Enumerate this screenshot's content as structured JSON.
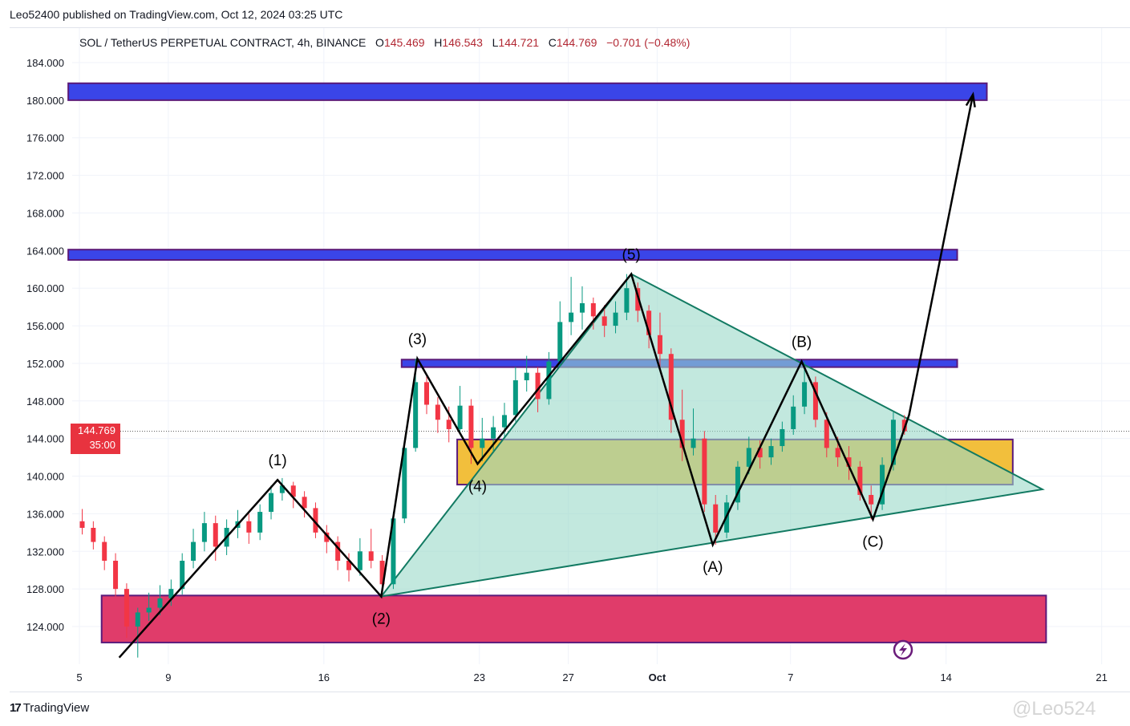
{
  "publisher": "Leo52400 published on TradingView.com, Oct 12, 2024 03:25 UTC",
  "legend": {
    "symbol": "SOL / TetherUS PERPETUAL CONTRACT, 4h, BINANCE",
    "o_label": "O",
    "o": "145.469",
    "h_label": "H",
    "h": "146.543",
    "l_label": "L",
    "l": "144.721",
    "c_label": "C",
    "c": "144.769",
    "change": "−0.701 (−0.48%)"
  },
  "price_label": {
    "price": "144.769",
    "countdown": "35:00"
  },
  "brand": "TradingView",
  "watermark": "@Leo524",
  "colors": {
    "up": "#089981",
    "down": "#f23645",
    "resistance": "#3a45e8",
    "support_zone": "#f2bf3c",
    "demand_zone": "#e03c6a",
    "triangle": "#9ad8c8",
    "triangle_edge": "#127a62",
    "last_price": "#e8333f"
  },
  "chart_data": {
    "type": "candlestick",
    "title": "SOL / TetherUS PERPETUAL CONTRACT, 4h, BINANCE",
    "ylim": [
      120,
      186
    ],
    "y_ticks": [
      "184.000",
      "180.000",
      "176.000",
      "172.000",
      "168.000",
      "164.000",
      "160.000",
      "156.000",
      "152.000",
      "148.000",
      "144.000",
      "140.000",
      "136.000",
      "132.000",
      "128.000",
      "124.000"
    ],
    "x_ticks": [
      {
        "label": "5",
        "date": "2024-09-05"
      },
      {
        "label": "9",
        "date": "2024-09-09"
      },
      {
        "label": "16",
        "date": "2024-09-16"
      },
      {
        "label": "23",
        "date": "2024-09-23"
      },
      {
        "label": "27",
        "date": "2024-09-27"
      },
      {
        "label": "Oct",
        "date": "2024-10-01"
      },
      {
        "label": "7",
        "date": "2024-10-07"
      },
      {
        "label": "14",
        "date": "2024-10-14"
      },
      {
        "label": "21",
        "date": "2024-10-21"
      }
    ],
    "grid": true,
    "last_price": 144.769,
    "candles_note_interval": "approx. 12h aggregate",
    "candles": [
      [
        "2024-09-05T00:00",
        135.2,
        136.5,
        133.8,
        134.5
      ],
      [
        "2024-09-05T12:00",
        134.5,
        135.2,
        132.2,
        133.0
      ],
      [
        "2024-09-06T00:00",
        133.0,
        133.6,
        130.0,
        131.0
      ],
      [
        "2024-09-06T12:00",
        131.0,
        131.8,
        127.2,
        128.0
      ],
      [
        "2024-09-07T00:00",
        128.0,
        128.6,
        122.8,
        124.0
      ],
      [
        "2024-09-07T12:00",
        124.0,
        126.0,
        120.7,
        125.5
      ],
      [
        "2024-09-08T00:00",
        125.5,
        127.6,
        124.6,
        126.0
      ],
      [
        "2024-09-08T12:00",
        126.0,
        128.4,
        125.2,
        127.0
      ],
      [
        "2024-09-09T00:00",
        127.0,
        129.0,
        126.2,
        128.0
      ],
      [
        "2024-09-09T12:00",
        128.0,
        131.8,
        127.4,
        131.0
      ],
      [
        "2024-09-10T00:00",
        131.0,
        134.4,
        130.2,
        133.0
      ],
      [
        "2024-09-10T12:00",
        133.0,
        136.2,
        132.0,
        135.0
      ],
      [
        "2024-09-11T00:00",
        135.0,
        135.8,
        131.0,
        132.5
      ],
      [
        "2024-09-11T12:00",
        132.5,
        135.4,
        131.6,
        134.5
      ],
      [
        "2024-09-12T00:00",
        134.5,
        136.4,
        133.4,
        135.2
      ],
      [
        "2024-09-12T12:00",
        135.2,
        136.0,
        132.8,
        134.0
      ],
      [
        "2024-09-13T00:00",
        134.0,
        137.0,
        133.2,
        136.2
      ],
      [
        "2024-09-13T12:00",
        136.2,
        139.0,
        135.4,
        138.2
      ],
      [
        "2024-09-14T00:00",
        138.2,
        139.8,
        137.4,
        139.0
      ],
      [
        "2024-09-14T12:00",
        139.0,
        139.4,
        136.6,
        137.8
      ],
      [
        "2024-09-15T00:00",
        137.8,
        138.4,
        135.6,
        136.6
      ],
      [
        "2024-09-15T12:00",
        136.6,
        137.2,
        133.4,
        134.0
      ],
      [
        "2024-09-16T00:00",
        134.0,
        134.8,
        131.8,
        133.0
      ],
      [
        "2024-09-16T12:00",
        133.0,
        133.6,
        130.0,
        131.0
      ],
      [
        "2024-09-17T00:00",
        131.0,
        131.8,
        128.8,
        130.0
      ],
      [
        "2024-09-17T12:00",
        130.0,
        133.4,
        129.4,
        132.0
      ],
      [
        "2024-09-18T00:00",
        132.0,
        134.4,
        130.2,
        131.0
      ],
      [
        "2024-09-18T12:00",
        131.0,
        131.6,
        127.2,
        128.5
      ],
      [
        "2024-09-19T00:00",
        128.5,
        136.2,
        128.0,
        135.5
      ],
      [
        "2024-09-19T12:00",
        135.5,
        143.8,
        135.0,
        143.0
      ],
      [
        "2024-09-20T00:00",
        143.0,
        152.5,
        142.6,
        150.0
      ],
      [
        "2024-09-20T12:00",
        150.0,
        150.8,
        146.6,
        147.6
      ],
      [
        "2024-09-21T00:00",
        147.6,
        148.4,
        144.6,
        146.0
      ],
      [
        "2024-09-21T12:00",
        146.0,
        147.4,
        143.6,
        145.0
      ],
      [
        "2024-09-22T00:00",
        145.0,
        149.6,
        144.4,
        147.5
      ],
      [
        "2024-09-22T12:00",
        147.5,
        148.2,
        141.3,
        143.0
      ],
      [
        "2024-09-23T00:00",
        143.0,
        146.2,
        141.6,
        144.0
      ],
      [
        "2024-09-23T12:00",
        144.0,
        146.4,
        142.6,
        145.2
      ],
      [
        "2024-09-24T00:00",
        145.2,
        147.8,
        144.2,
        146.5
      ],
      [
        "2024-09-24T12:00",
        146.5,
        151.6,
        145.8,
        150.2
      ],
      [
        "2024-09-25T00:00",
        150.2,
        152.8,
        149.0,
        151.0
      ],
      [
        "2024-09-25T12:00",
        151.0,
        151.6,
        146.8,
        148.2
      ],
      [
        "2024-09-26T00:00",
        148.2,
        153.2,
        147.6,
        152.2
      ],
      [
        "2024-09-26T12:00",
        152.2,
        158.6,
        151.6,
        156.4
      ],
      [
        "2024-09-27T00:00",
        156.4,
        161.2,
        155.0,
        157.4
      ],
      [
        "2024-09-27T12:00",
        157.4,
        160.2,
        155.6,
        158.4
      ],
      [
        "2024-09-28T00:00",
        158.4,
        159.0,
        155.6,
        157.0
      ],
      [
        "2024-09-28T12:00",
        157.0,
        158.2,
        154.8,
        156.0
      ],
      [
        "2024-09-29T00:00",
        156.0,
        158.6,
        155.2,
        157.4
      ],
      [
        "2024-09-29T12:00",
        157.4,
        161.5,
        156.6,
        160.0
      ],
      [
        "2024-09-30T00:00",
        160.0,
        160.6,
        156.4,
        157.6
      ],
      [
        "2024-09-30T12:00",
        157.6,
        158.2,
        153.6,
        155.0
      ],
      [
        "2024-10-01T00:00",
        155.0,
        157.4,
        151.6,
        153.0
      ],
      [
        "2024-10-01T12:00",
        153.0,
        153.6,
        144.6,
        146.0
      ],
      [
        "2024-10-02T00:00",
        146.0,
        149.2,
        141.6,
        143.0
      ],
      [
        "2024-10-02T12:00",
        143.0,
        147.2,
        142.2,
        144.0
      ],
      [
        "2024-10-03T00:00",
        144.0,
        144.8,
        136.2,
        137.0
      ],
      [
        "2024-10-03T12:00",
        137.0,
        138.0,
        132.7,
        134.0
      ],
      [
        "2024-10-04T00:00",
        134.0,
        138.0,
        133.4,
        137.2
      ],
      [
        "2024-10-04T12:00",
        137.2,
        141.6,
        136.4,
        141.0
      ],
      [
        "2024-10-05T00:00",
        141.0,
        144.2,
        140.2,
        143.0
      ],
      [
        "2024-10-05T12:00",
        143.0,
        143.8,
        140.8,
        142.0
      ],
      [
        "2024-10-06T00:00",
        142.0,
        144.0,
        141.2,
        143.2
      ],
      [
        "2024-10-06T12:00",
        143.2,
        145.8,
        142.6,
        145.0
      ],
      [
        "2024-10-07T00:00",
        145.0,
        148.6,
        144.4,
        147.4
      ],
      [
        "2024-10-07T12:00",
        147.4,
        152.2,
        146.6,
        150.0
      ],
      [
        "2024-10-08T00:00",
        150.0,
        150.6,
        145.2,
        146.0
      ],
      [
        "2024-10-08T12:00",
        146.0,
        146.8,
        142.0,
        143.0
      ],
      [
        "2024-10-09T00:00",
        143.0,
        144.2,
        141.0,
        142.0
      ],
      [
        "2024-10-09T12:00",
        142.0,
        143.2,
        139.6,
        141.0
      ],
      [
        "2024-10-10T00:00",
        141.0,
        141.6,
        137.4,
        138.0
      ],
      [
        "2024-10-10T12:00",
        138.0,
        139.0,
        135.4,
        137.0
      ],
      [
        "2024-10-11T00:00",
        137.0,
        142.0,
        136.4,
        141.2
      ],
      [
        "2024-10-11T12:00",
        141.2,
        146.8,
        140.6,
        146.0
      ],
      [
        "2024-10-12T00:00",
        146.0,
        146.5,
        144.4,
        144.769
      ]
    ],
    "zones": [
      {
        "name": "resistance-180",
        "from": "2024-09-04T12:00",
        "to": "2024-10-15T20:00",
        "low": 180.0,
        "high": 181.8,
        "color": "#3a45e8"
      },
      {
        "name": "resistance-163",
        "from": "2024-09-04T12:00",
        "to": "2024-10-14T12:00",
        "low": 163.0,
        "high": 164.1,
        "color": "#3a45e8"
      },
      {
        "name": "resistance-152",
        "from": "2024-09-19T12:00",
        "to": "2024-10-14T12:00",
        "low": 151.6,
        "high": 152.4,
        "color": "#3a45e8"
      },
      {
        "name": "support-zone",
        "from": "2024-09-22T00:00",
        "to": "2024-10-17T00:00",
        "low": 139.1,
        "high": 143.9,
        "color": "#f2bf3c"
      },
      {
        "name": "demand-zone",
        "from": "2024-09-06T00:00",
        "to": "2024-10-18T12:00",
        "low": 122.3,
        "high": 127.3,
        "color": "#e03c6a"
      }
    ],
    "triangle": [
      [
        "2024-09-18T14:00",
        127.2
      ],
      [
        "2024-09-29T20:00",
        161.5
      ],
      [
        "2024-10-18T08:00",
        138.6
      ]
    ],
    "wave_path": [
      {
        "date": "2024-09-06T19:00",
        "price": 120.7,
        "label": ""
      },
      {
        "date": "2024-09-13T22:00",
        "price": 139.6,
        "label": "(1)",
        "side": "above"
      },
      {
        "date": "2024-09-18T14:00",
        "price": 127.2,
        "label": "(2)",
        "side": "below"
      },
      {
        "date": "2024-09-20T05:00",
        "price": 152.5,
        "label": "(3)",
        "side": "above"
      },
      {
        "date": "2024-09-22T22:00",
        "price": 141.3,
        "label": "(4)",
        "side": "below"
      },
      {
        "date": "2024-09-29T20:00",
        "price": 161.5,
        "label": "(5)",
        "side": "above"
      },
      {
        "date": "2024-10-03T12:00",
        "price": 132.7,
        "label": "(A)",
        "side": "below"
      },
      {
        "date": "2024-10-07T12:00",
        "price": 152.2,
        "label": "(B)",
        "side": "above"
      },
      {
        "date": "2024-10-10T17:00",
        "price": 135.4,
        "label": "(C)",
        "side": "below"
      },
      {
        "date": "2024-10-12T08:00",
        "price": 146.5,
        "label": ""
      },
      {
        "date": "2024-10-15T05:00",
        "price": 180.6,
        "label": ""
      }
    ]
  }
}
